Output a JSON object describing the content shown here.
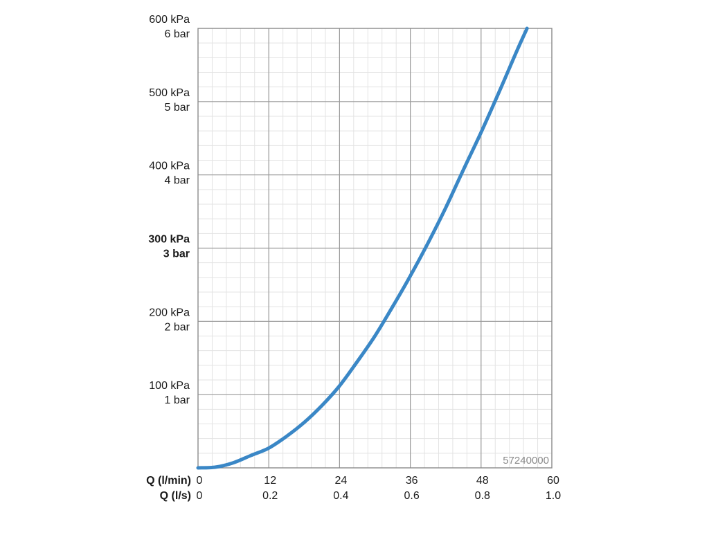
{
  "chart_data": {
    "type": "line",
    "x_axes": [
      {
        "label": "Q (l/min)",
        "ticks": [
          "0",
          "12",
          "24",
          "36",
          "48",
          "60"
        ],
        "range": [
          0,
          60
        ]
      },
      {
        "label": "Q (l/s)",
        "ticks": [
          "0",
          "0.2",
          "0.4",
          "0.6",
          "0.8",
          "1.0"
        ],
        "range": [
          0,
          1.0
        ]
      }
    ],
    "y_axis": {
      "range": [
        0,
        600
      ],
      "unit": "kPa",
      "ticks": [
        {
          "value": 100,
          "kpa": "100 kPa",
          "bar": "1 bar",
          "bold": false
        },
        {
          "value": 200,
          "kpa": "200 kPa",
          "bar": "2 bar",
          "bold": false
        },
        {
          "value": 300,
          "kpa": "300 kPa",
          "bar": "3 bar",
          "bold": true
        },
        {
          "value": 400,
          "kpa": "400 kPa",
          "bar": "4 bar",
          "bold": false
        },
        {
          "value": 500,
          "kpa": "500 kPa",
          "bar": "5 bar",
          "bold": false
        },
        {
          "value": 600,
          "kpa": "600 kPa",
          "bar": "6 bar",
          "bold": false
        }
      ]
    },
    "grid": true,
    "series": [
      {
        "color": "#3a87c6",
        "points": [
          [
            0,
            0
          ],
          [
            3,
            1
          ],
          [
            6,
            7
          ],
          [
            9,
            17
          ],
          [
            12,
            27
          ],
          [
            15,
            43
          ],
          [
            18,
            62
          ],
          [
            21,
            85
          ],
          [
            24,
            112
          ],
          [
            27,
            145
          ],
          [
            30,
            180
          ],
          [
            33,
            220
          ],
          [
            36,
            262
          ],
          [
            39,
            307
          ],
          [
            42,
            355
          ],
          [
            45,
            407
          ],
          [
            48,
            458
          ],
          [
            51,
            512
          ],
          [
            54,
            568
          ],
          [
            55.8,
            600
          ]
        ]
      }
    ],
    "annotation": "57240000"
  }
}
